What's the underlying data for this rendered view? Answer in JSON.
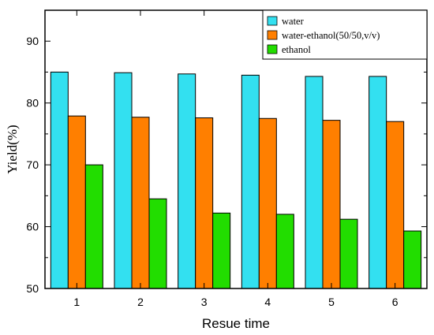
{
  "chart_data": {
    "type": "bar",
    "xlabel": "Resue time",
    "ylabel": "Yield(%)",
    "categories": [
      "1",
      "2",
      "3",
      "4",
      "5",
      "6"
    ],
    "ylim": [
      50,
      95
    ],
    "yticks": [
      "50",
      "60",
      "70",
      "80",
      "90"
    ],
    "legend_position": "top-right",
    "grid": false,
    "series": [
      {
        "name": "water",
        "color": "#33e0f0",
        "values": [
          85.0,
          84.9,
          84.7,
          84.5,
          84.3,
          84.3
        ]
      },
      {
        "name": "water-ethanol(50/50,v/v)",
        "color": "#ff7f00",
        "values": [
          77.9,
          77.7,
          77.6,
          77.5,
          77.2,
          77.0
        ]
      },
      {
        "name": "ethanol",
        "color": "#22dd00",
        "values": [
          70.0,
          64.5,
          62.2,
          62.0,
          61.2,
          59.3
        ]
      }
    ]
  }
}
